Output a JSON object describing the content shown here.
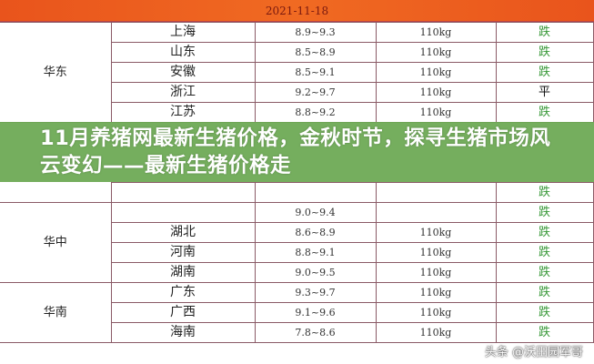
{
  "header": {
    "date": "2021-11-18"
  },
  "colors": {
    "up_down_green": "#3a9a3a",
    "flat_black": "#111111",
    "header_orange": "#e9541c",
    "overlay_green": "#6eaa55"
  },
  "rows": [
    {
      "region": "华东",
      "province": "上海",
      "price": "8.9~9.3",
      "weight": "110kg",
      "trend": "跌"
    },
    {
      "province": "山东",
      "price": "8.5~8.9",
      "weight": "110kg",
      "trend": "跌"
    },
    {
      "province": "安徽",
      "price": "8.5~9.1",
      "weight": "110kg",
      "trend": "跌"
    },
    {
      "province": "浙江",
      "price": "9.2~9.7",
      "weight": "110kg",
      "trend": "平"
    },
    {
      "province": "江苏",
      "price": "8.8~9.2",
      "weight": "110kg",
      "trend": "跌"
    },
    {
      "province": "",
      "price": "",
      "weight": "",
      "trend": "跌"
    },
    {
      "region": "华中",
      "province": "",
      "price": "9.0~9.4",
      "weight": "",
      "trend": "跌"
    },
    {
      "province": "湖北",
      "price": "8.6~8.9",
      "weight": "110kg",
      "trend": "跌"
    },
    {
      "province": "河南",
      "price": "8.8~9.1",
      "weight": "110kg",
      "trend": "跌"
    },
    {
      "province": "湖南",
      "price": "9.0~9.5",
      "weight": "110kg",
      "trend": "跌"
    },
    {
      "region": "华南",
      "province": "广东",
      "price": "9.3~9.7",
      "weight": "110kg",
      "trend": "跌"
    },
    {
      "province": "广西",
      "price": "9.1~9.6",
      "weight": "110kg",
      "trend": "跌"
    },
    {
      "province": "海南",
      "price": "7.8~8.6",
      "weight": "110kg",
      "trend": "跌"
    }
  ],
  "overlay": {
    "title": "11月养猪网最新生猪价格，金秋时节，探寻生猪市场风云变幻——最新生猪价格走"
  },
  "watermark": "头条 @沃田园军哥"
}
